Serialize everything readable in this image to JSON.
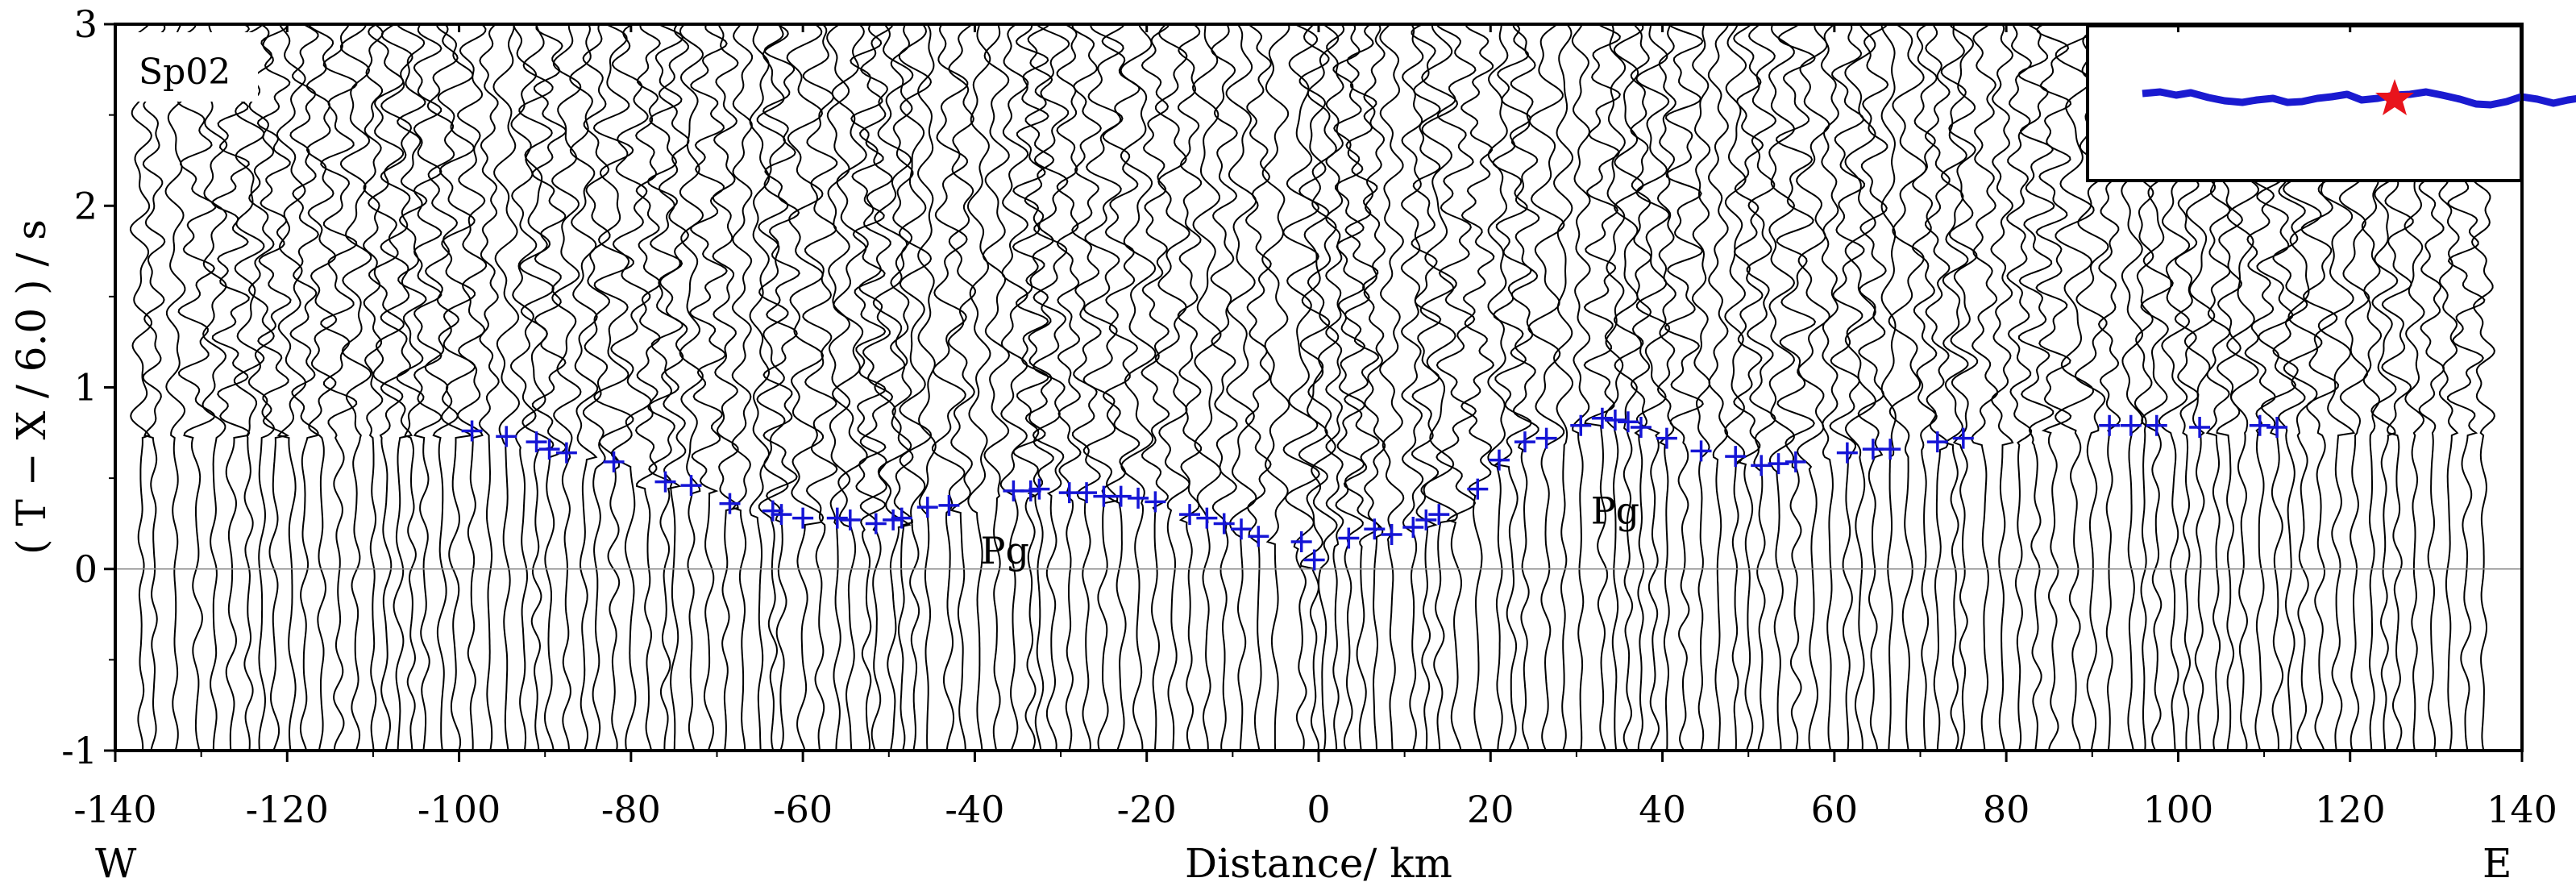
{
  "chart_data": {
    "type": "scatter",
    "title": "",
    "shot_label": "Sp02",
    "xlabel": "Distance/ km",
    "ylabel": "( T − X / 6.0 ) / s",
    "x_left_label": "W",
    "x_right_label": "E",
    "xlim": [
      -140,
      140
    ],
    "ylim": [
      -1,
      3
    ],
    "x_ticks": [
      -140,
      -120,
      -100,
      -80,
      -60,
      -40,
      -20,
      0,
      20,
      40,
      60,
      80,
      100,
      120,
      140
    ],
    "x_tick_labels": [
      "-140",
      "-120",
      "-100",
      "-80",
      "-60",
      "-40",
      "-20",
      "0",
      "20",
      "40",
      "60",
      "80",
      "100",
      "120",
      "140"
    ],
    "y_ticks": [
      -1,
      0,
      1,
      2,
      3
    ],
    "y_tick_labels": [
      "-1",
      "0",
      "1",
      "2",
      "3"
    ],
    "zero_line": 0,
    "trace_color": "#000000",
    "pick_color": "#1515d6",
    "phase_labels": [
      {
        "text": "Pg",
        "x": -36.5,
        "y": 0.03
      },
      {
        "text": "Pg",
        "x": 34.5,
        "y": 0.25
      }
    ],
    "series": [
      {
        "name": "Pg",
        "x": [
          -98.5,
          -94.5,
          -91,
          -89.5,
          -87.5,
          -82,
          -76,
          -73,
          -68.5,
          -63.5,
          -62.5,
          -60,
          -56,
          -54.5,
          -51.5,
          -49.5,
          -48.5,
          -45.5,
          -43,
          -35.5,
          -33.5,
          -32.5,
          -29,
          -27,
          -25,
          -23,
          -21,
          -19,
          -15,
          -13,
          -11,
          -9,
          -7,
          -2,
          -0.5,
          3.5,
          6.5,
          8.5,
          11,
          12.5,
          14,
          18.5,
          21,
          24,
          26.5,
          30.5,
          33,
          34.5,
          36,
          37.5,
          40.5,
          44.5,
          48.5,
          51.5,
          53.5,
          55.5,
          61.5,
          64.5,
          66.5,
          72,
          75,
          92,
          94.5,
          97.5,
          102.5,
          109.5,
          111.5
        ],
        "y": [
          0.76,
          0.73,
          0.7,
          0.66,
          0.64,
          0.59,
          0.48,
          0.46,
          0.36,
          0.32,
          0.3,
          0.28,
          0.28,
          0.27,
          0.25,
          0.27,
          0.28,
          0.34,
          0.35,
          0.43,
          0.43,
          0.44,
          0.42,
          0.42,
          0.4,
          0.4,
          0.39,
          0.37,
          0.3,
          0.28,
          0.25,
          0.22,
          0.18,
          0.15,
          0.05,
          0.17,
          0.22,
          0.19,
          0.23,
          0.27,
          0.3,
          0.44,
          0.6,
          0.7,
          0.72,
          0.79,
          0.83,
          0.82,
          0.81,
          0.78,
          0.72,
          0.65,
          0.62,
          0.57,
          0.58,
          0.59,
          0.64,
          0.66,
          0.66,
          0.7,
          0.72,
          0.79,
          0.79,
          0.79,
          0.78,
          0.79,
          0.78
        ]
      }
    ],
    "trace_offsets": [
      -137,
      -135.5,
      -133,
      -130.5,
      -128.5,
      -126.5,
      -124.5,
      -123,
      -121.5,
      -119.5,
      -118,
      -116,
      -114,
      -112,
      -110,
      -108.5,
      -107,
      -105.5,
      -104,
      -102,
      -100.5,
      -98.5,
      -96.5,
      -94.5,
      -92.5,
      -91,
      -89.5,
      -87.5,
      -85.5,
      -84,
      -82,
      -80,
      -78,
      -76,
      -75,
      -73,
      -71,
      -69,
      -67,
      -65,
      -63.5,
      -62.5,
      -60,
      -58,
      -56,
      -54.5,
      -52.5,
      -51.5,
      -49.5,
      -48.5,
      -47,
      -45.5,
      -43,
      -41.5,
      -39.5,
      -37.5,
      -35.5,
      -33.5,
      -32.5,
      -31,
      -29,
      -27,
      -25,
      -23,
      -21,
      -19,
      -17,
      -15,
      -13,
      -11,
      -9,
      -7,
      -5,
      -2,
      -0.5,
      0.5,
      2,
      3.5,
      5,
      6.5,
      8.5,
      11,
      12.5,
      14,
      16,
      18.5,
      21,
      22.5,
      24,
      26.5,
      28.5,
      30.5,
      33,
      34.5,
      36,
      37.5,
      39,
      40.5,
      42.5,
      44.5,
      46.5,
      48.5,
      50,
      51.5,
      53.5,
      55.5,
      57.5,
      59.5,
      61.5,
      63,
      64.5,
      66.5,
      68.5,
      70.5,
      72,
      74,
      75,
      77.5,
      79.5,
      81.5,
      83.5,
      85.5,
      88,
      90,
      92,
      94.5,
      96,
      97.5,
      99.5,
      101,
      102.5,
      104.5,
      106,
      107.5,
      109.5,
      111.5,
      113,
      114.5,
      116.5,
      118.5,
      120.5,
      122.5,
      124,
      125.5,
      127.5,
      129.5,
      131.5,
      133.5,
      135.5
    ],
    "inset_map": {
      "route_color": "#1a1ad0",
      "source_marker_color": "#e8141c"
    }
  }
}
